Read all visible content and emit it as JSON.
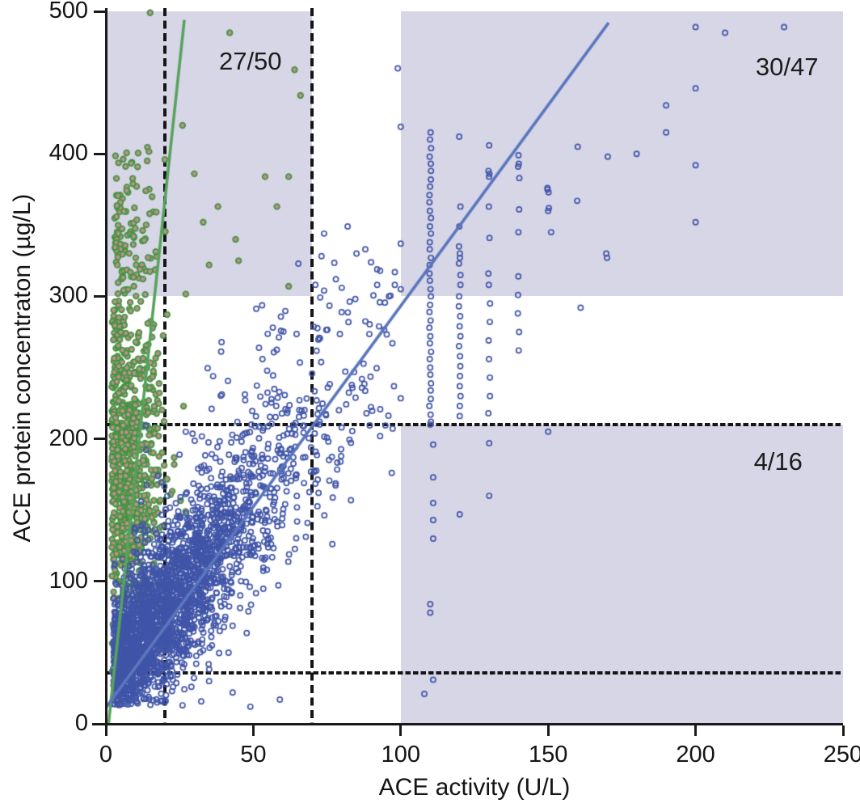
{
  "chart_data": {
    "type": "scatter",
    "title": "",
    "xlabel": "ACE activity (U/L)",
    "ylabel": "ACE protein concentraton (µg/L)",
    "xlim": [
      0,
      250
    ],
    "ylim": [
      0,
      500
    ],
    "xticks": [
      0,
      50,
      100,
      150,
      200,
      250
    ],
    "yticks": [
      0,
      100,
      200,
      300,
      400,
      500
    ],
    "grid": false,
    "legend": "none",
    "colors": {
      "region_fill": "#d7d6e7",
      "dashed_line": "#151515",
      "spine": "#1a1a1a",
      "green_edge": "#42953f",
      "green_face": "#bf8f8f",
      "blue_edge": "#4055a8",
      "green_line": "#57a25c",
      "blue_line": "#5a76bd"
    },
    "reference_lines": {
      "vertical_x": [
        20,
        70
      ],
      "horizontal_y": [
        36,
        210
      ]
    },
    "shaded_regions": [
      {
        "name": "upper-left",
        "x": [
          0,
          70
        ],
        "y": [
          300,
          500
        ],
        "label": "27/50"
      },
      {
        "name": "upper-right",
        "x": [
          100,
          250
        ],
        "y": [
          300,
          500
        ],
        "label": "30/47"
      },
      {
        "name": "lower-right",
        "x": [
          100,
          250
        ],
        "y": [
          0,
          210
        ],
        "label": "4/16"
      }
    ],
    "annotation_positions": [
      {
        "label": "27/50",
        "x": 49,
        "y": 465
      },
      {
        "label": "30/47",
        "x": 231,
        "y": 461
      },
      {
        "label": "4/16",
        "x": 228,
        "y": 184
      }
    ],
    "regression_lines": [
      {
        "series": "green",
        "x1": 0.9,
        "y1": 0,
        "x2": 26.6,
        "y2": 494
      },
      {
        "series": "blue",
        "x1": 0.2,
        "y1": 12,
        "x2": 170.5,
        "y2": 492
      }
    ],
    "series": [
      {
        "name": "green",
        "marker": {
          "edge": "#42953f",
          "face": "#bf8f8f",
          "radius": 3.3,
          "stroke": 1.8
        },
        "clusters": [
          {
            "n": 25,
            "xmode": "halfnorm",
            "x0": 1.5,
            "sx": 2.5,
            "xmax": 10,
            "cy": 45,
            "sy": 16,
            "ymin": 16,
            "ymax": 62
          },
          {
            "n": 800,
            "xmode": "halfnorm",
            "x0": 2,
            "sx": 8,
            "xmax": 46,
            "cy": 185,
            "sy": 56,
            "ymin": 58,
            "ymax": 303
          },
          {
            "n": 115,
            "xmode": "halfnorm",
            "x0": 3,
            "sx": 7,
            "xmax": 32,
            "cy": 338,
            "sy": 30,
            "ymin": 303,
            "ymax": 414
          }
        ],
        "columns": [],
        "outliers": [
          [
            15,
            499
          ],
          [
            42,
            485
          ],
          [
            64,
            459
          ],
          [
            66,
            441
          ],
          [
            54,
            384
          ],
          [
            62,
            384
          ],
          [
            38,
            363
          ],
          [
            58,
            363
          ],
          [
            62,
            307
          ],
          [
            45,
            325
          ],
          [
            35,
            322
          ],
          [
            30,
            386
          ],
          [
            33,
            352
          ],
          [
            44,
            340
          ],
          [
            20,
            396
          ],
          [
            14,
            395
          ],
          [
            26,
            420
          ]
        ]
      },
      {
        "name": "blue",
        "marker": {
          "edge": "#4055a8",
          "face": "none",
          "radius": 3.1,
          "stroke": 1.7
        },
        "clusters": [
          {
            "n": 2300,
            "xmode": "halfnorm",
            "x0": 2.5,
            "sx": 26,
            "xmax": 103,
            "slope": 2.55,
            "intercept": 30,
            "sy": 27,
            "ymin": 13,
            "ymax": 346
          },
          {
            "n": 130,
            "xmode": "uniform",
            "x0": 8,
            "xmax": 76,
            "slope": 2.55,
            "intercept": 92,
            "sy": 32,
            "ymin": 60,
            "ymax": 345
          },
          {
            "n": 90,
            "xmode": "uniform",
            "x0": 15,
            "xmax": 86,
            "slope": 2.55,
            "intercept": -22,
            "sy": 24,
            "ymin": 14,
            "ymax": 210
          },
          {
            "n": 55,
            "xmode": "uniform",
            "x0": 70,
            "xmax": 100,
            "cy": 252,
            "sy": 40,
            "ymin": 175,
            "ymax": 332
          }
        ],
        "columns": [
          {
            "x": 110,
            "ys": [
              415,
              410,
              404,
              398,
              393,
              388,
              382,
              377,
              371,
              366,
              360,
              355,
              349,
              344,
              338,
              333,
              327,
              322,
              316,
              311,
              305,
              300,
              294,
              289,
              283,
              278,
              272,
              267,
              261,
              256,
              250,
              245,
              239,
              234,
              228,
              223,
              217,
              212
            ]
          },
          {
            "x": 120,
            "ys": [
              412,
              363,
              349,
              335,
              330,
              327,
              323,
              315,
              308,
              300,
              293,
              286,
              279,
              272,
              265,
              258,
              251,
              244,
              237,
              230,
              223,
              216
            ]
          },
          {
            "x": 130,
            "ys": [
              406,
              388,
              386,
              384,
              363,
              341,
              316,
              308,
              295,
              282,
              269,
              256,
              243,
              230,
              218
            ]
          },
          {
            "x": 140,
            "ys": [
              399,
              393,
              391,
              383,
              361,
              345,
              314,
              301,
              288,
              275,
              262
            ]
          },
          {
            "x": 150,
            "ys": [
              376,
              375,
              373,
              362,
              360
            ]
          },
          {
            "x": 160,
            "ys": [
              405,
              367
            ]
          },
          {
            "x": 170,
            "ys": [
              398,
              330,
              327
            ]
          }
        ],
        "outliers": [
          [
            200,
            489
          ],
          [
            210,
            485
          ],
          [
            230,
            489
          ],
          [
            200,
            446
          ],
          [
            190,
            434
          ],
          [
            190,
            415
          ],
          [
            180,
            400
          ],
          [
            200,
            392
          ],
          [
            200,
            352
          ],
          [
            151,
            345
          ],
          [
            161,
            292
          ],
          [
            99,
            460
          ],
          [
            100,
            419
          ],
          [
            100,
            337
          ],
          [
            100,
            305
          ],
          [
            96,
            300
          ],
          [
            110,
            210
          ],
          [
            111,
            196
          ],
          [
            130,
            197
          ],
          [
            150,
            205
          ],
          [
            111,
            173
          ],
          [
            130,
            160
          ],
          [
            111,
            155
          ],
          [
            120,
            147
          ],
          [
            111,
            143
          ],
          [
            111,
            130
          ],
          [
            110,
            84
          ],
          [
            110,
            78
          ],
          [
            111,
            31
          ],
          [
            108,
            21
          ],
          [
            7,
            37
          ],
          [
            12,
            28
          ],
          [
            16,
            31
          ],
          [
            29,
            26
          ],
          [
            13,
            18
          ],
          [
            59,
            17
          ],
          [
            49,
            12
          ],
          [
            22,
            33
          ],
          [
            35,
            30
          ],
          [
            43,
            22
          ],
          [
            26,
            13
          ],
          [
            74,
            344
          ],
          [
            82,
            349
          ],
          [
            88,
            333
          ],
          [
            78,
            312
          ],
          [
            80,
            306
          ],
          [
            92,
            319
          ],
          [
            93,
            318
          ],
          [
            98,
            317
          ],
          [
            98,
            308
          ],
          [
            92,
            308
          ],
          [
            74,
            304
          ],
          [
            85,
            330
          ]
        ]
      }
    ]
  }
}
